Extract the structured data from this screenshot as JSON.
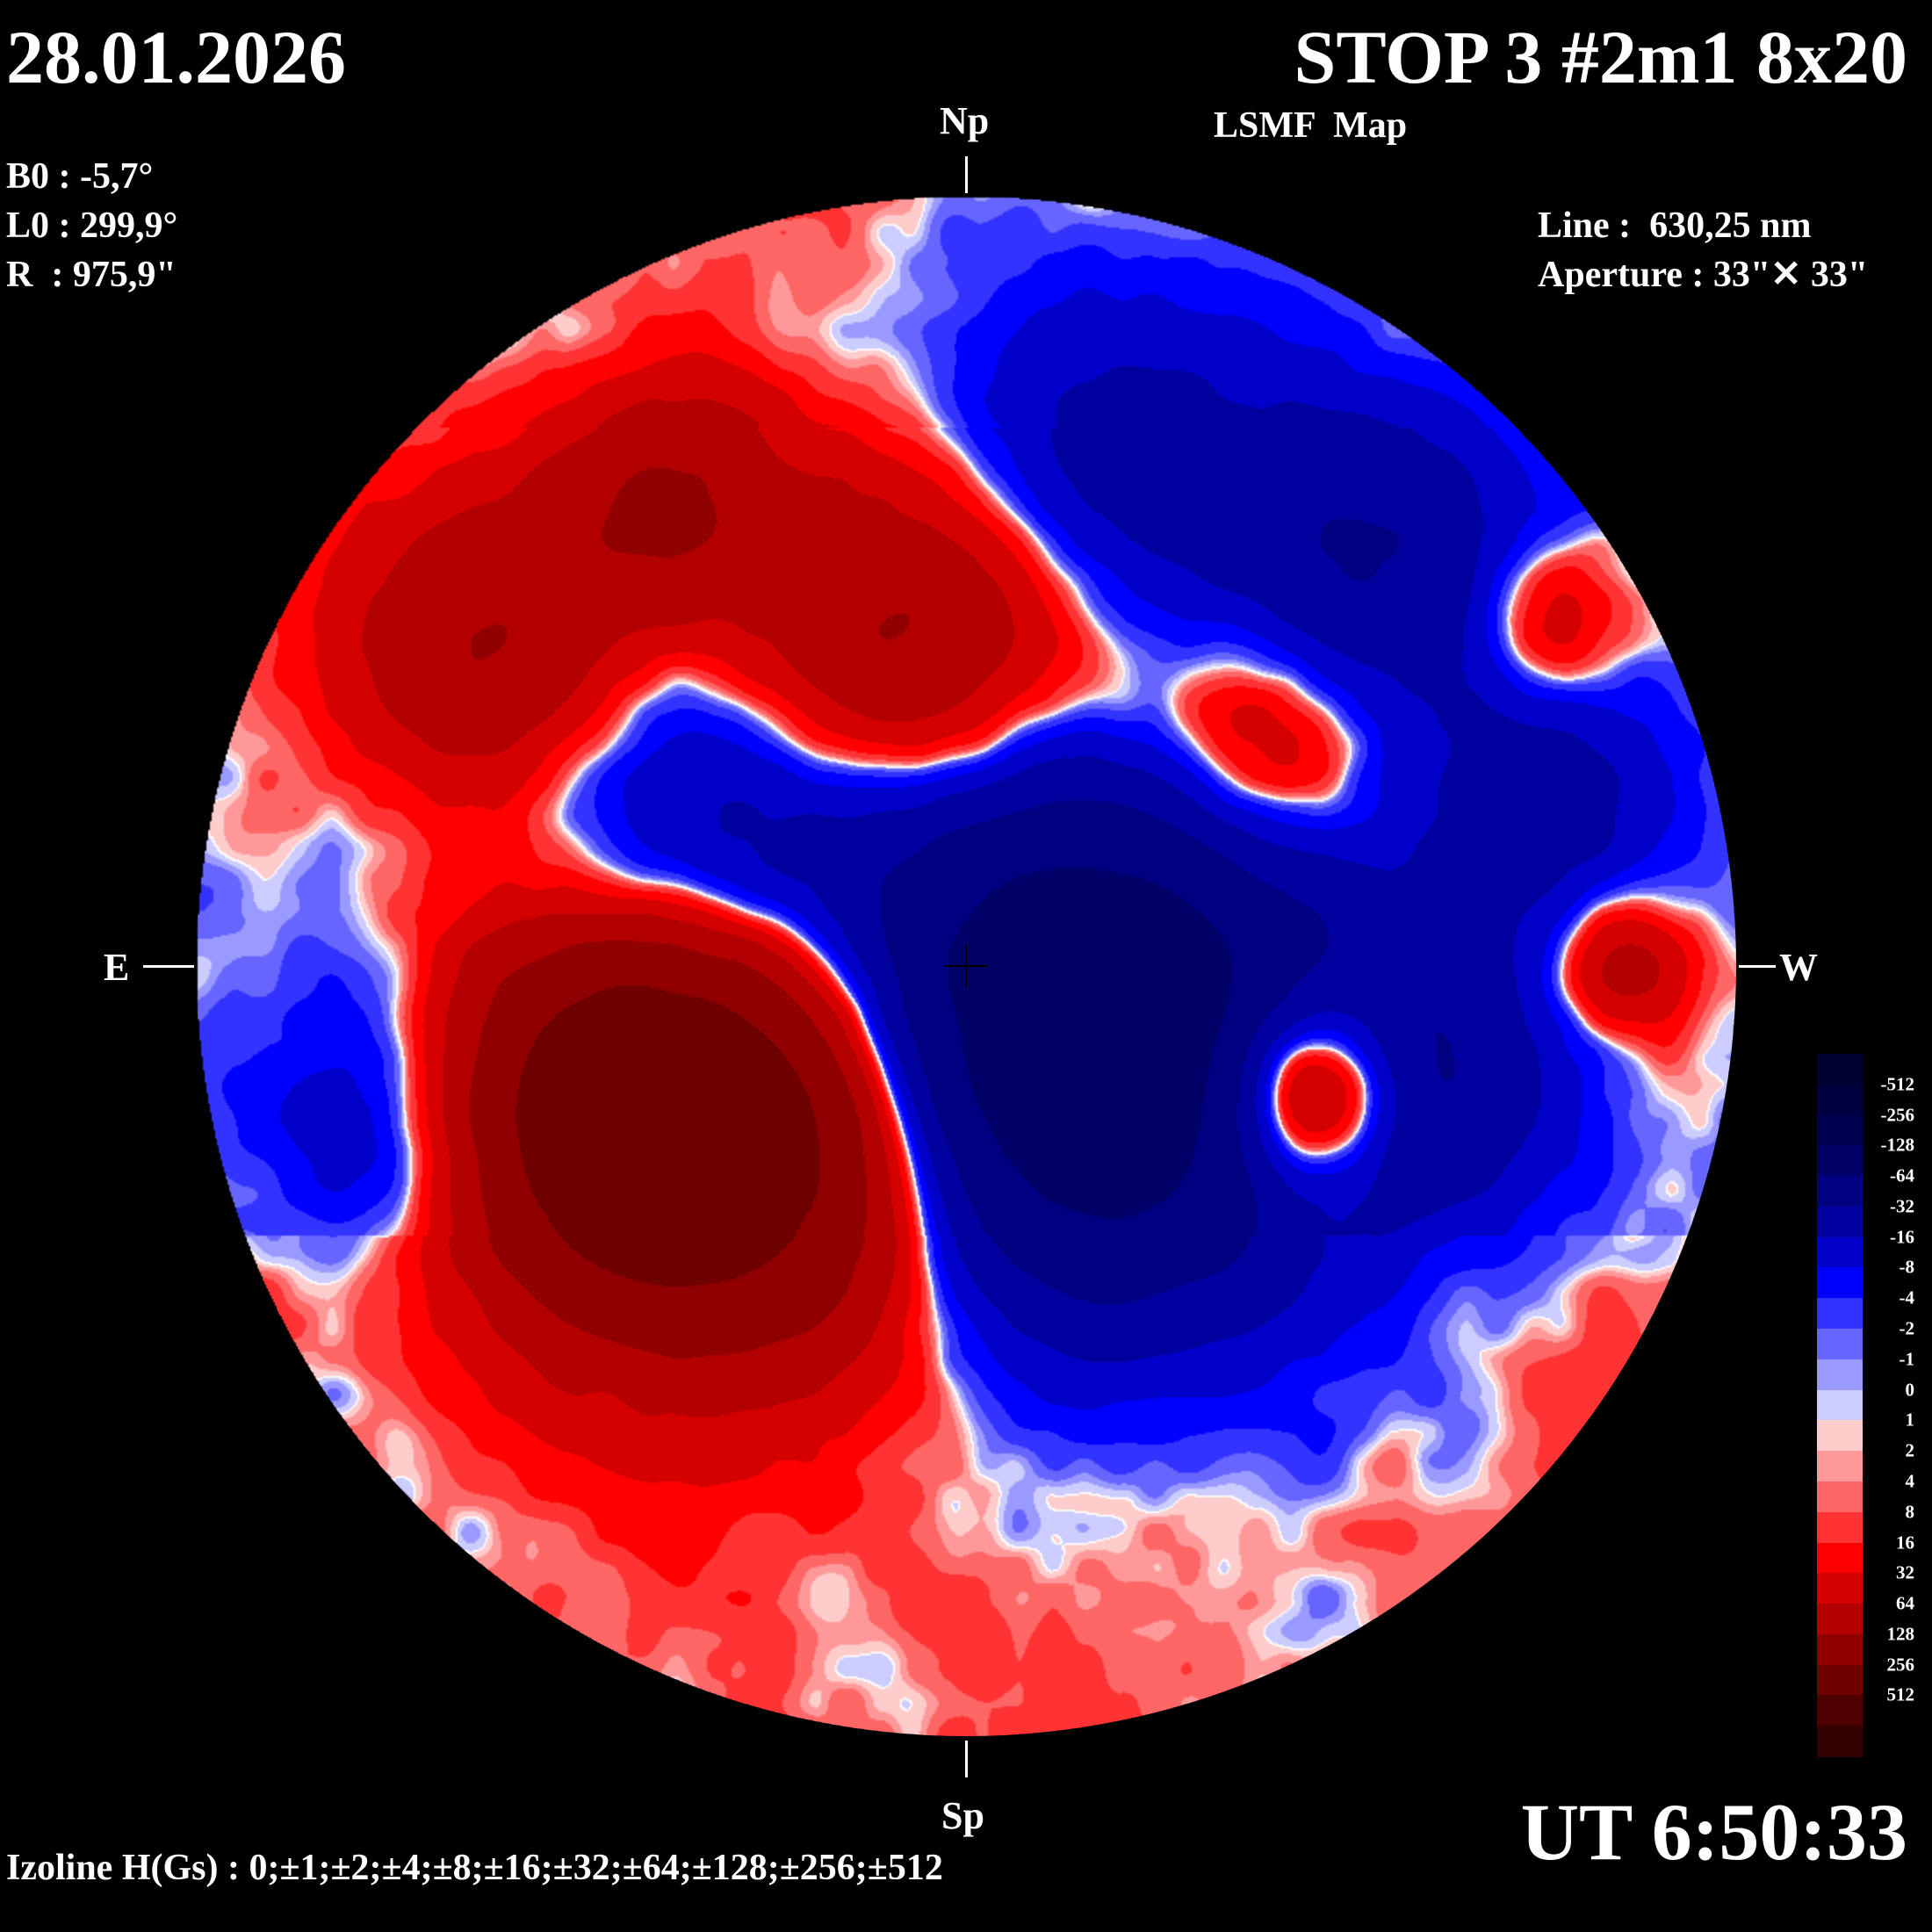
{
  "header": {
    "date": "28.01.2026",
    "title": "STOP 3 #2m1 8x20",
    "subtitle": "LSMF  Map"
  },
  "params": {
    "b0": "B0 : -5,7°",
    "l0": "L0 : 299,9°",
    "r": "R  : 975,9\""
  },
  "instrument": {
    "line": "Line :  630,25 nm",
    "aperture": "Aperture : 33\"✕ 33\""
  },
  "orientation": {
    "north": "Np",
    "south": "Sp",
    "east": "E",
    "west": "W"
  },
  "time": "UT 6:50:33",
  "isolines": "Izoline H(Gs) : 0;±1;±2;±4;±8;±16;±32;±64;±128;±256;±512",
  "colorbar": {
    "labels": [
      "-512",
      "-256",
      "-128",
      "-64",
      "-32",
      "-16",
      "-8",
      "-4",
      "-2",
      "-1",
      "0",
      "1",
      "2",
      "4",
      "8",
      "16",
      "32",
      "64",
      "128",
      "256",
      "512"
    ],
    "colors": [
      "#000030",
      "#00003f",
      "#000050",
      "#000066",
      "#000080",
      "#00009e",
      "#0000c8",
      "#0000ff",
      "#3333ff",
      "#6666ff",
      "#9999ff",
      "#ccccff",
      "#ffcccc",
      "#ff9999",
      "#ff6666",
      "#ff3333",
      "#ff0000",
      "#d40000",
      "#b30000",
      "#900000",
      "#6e0000",
      "#4e0000",
      "#330000"
    ],
    "units": "Gs"
  }
}
